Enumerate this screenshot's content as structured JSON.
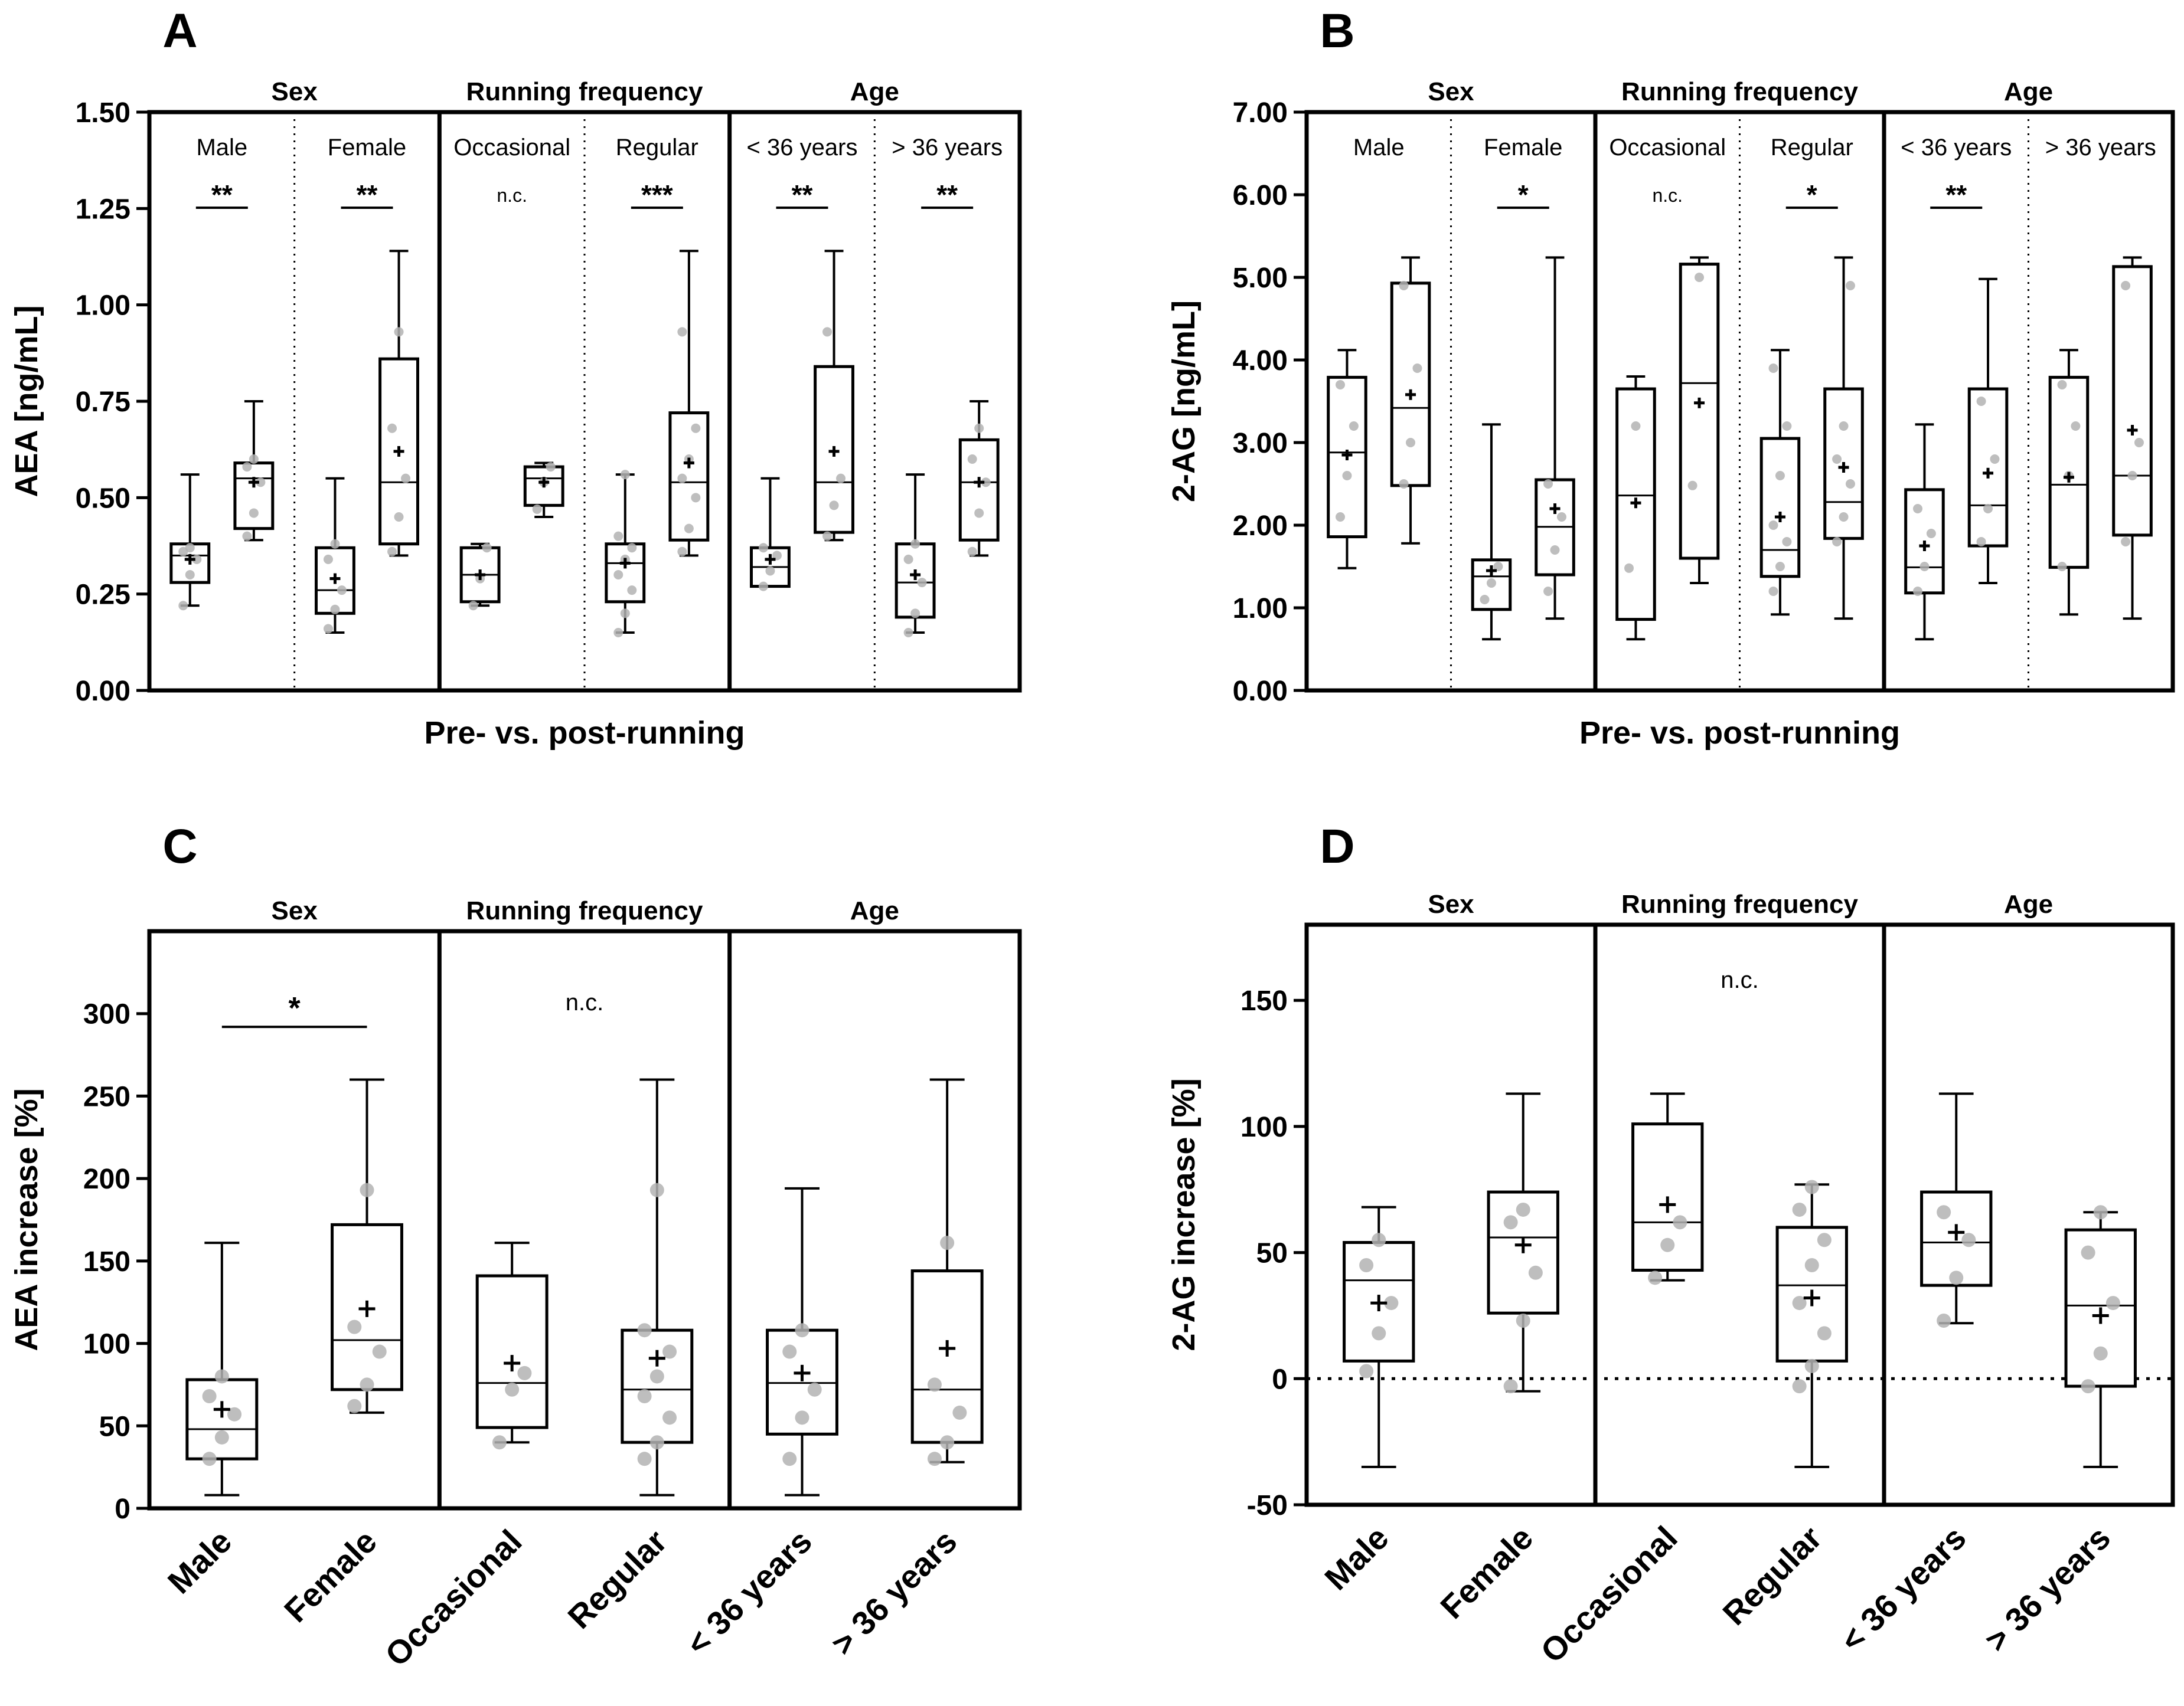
{
  "colors": {
    "axis": "#000000",
    "box": "#000000",
    "point": "#b3b3b3",
    "mean": "#000000"
  },
  "chart_data": [
    {
      "panel": "A",
      "type": "box",
      "ylabel": "AEA [ng/mL]",
      "xlabel": "Pre- vs. post-running",
      "ylim": [
        0,
        1.5
      ],
      "yticks": [
        "0.00",
        "0.25",
        "0.50",
        "0.75",
        "1.00",
        "1.25",
        "1.50"
      ],
      "groups": [
        "Sex",
        "Running frequency",
        "Age"
      ],
      "categories": [
        "Male",
        "Female",
        "Occasional",
        "Regular",
        "< 36 years",
        "> 36 years"
      ],
      "significance": [
        "**",
        "**",
        "n.c.",
        "***",
        "**",
        "**"
      ],
      "boxes": [
        {
          "cat": 0,
          "min": 0.22,
          "q1": 0.28,
          "median": 0.35,
          "q3": 0.38,
          "max": 0.56,
          "mean": 0.34,
          "points": [
            0.22,
            0.3,
            0.34,
            0.36,
            0.37
          ]
        },
        {
          "cat": 0,
          "min": 0.39,
          "q1": 0.42,
          "median": 0.55,
          "q3": 0.59,
          "max": 0.75,
          "mean": 0.54,
          "points": [
            0.4,
            0.46,
            0.54,
            0.58,
            0.6
          ]
        },
        {
          "cat": 1,
          "min": 0.15,
          "q1": 0.2,
          "median": 0.26,
          "q3": 0.37,
          "max": 0.55,
          "mean": 0.29,
          "points": [
            0.16,
            0.21,
            0.26,
            0.34,
            0.38
          ]
        },
        {
          "cat": 1,
          "min": 0.35,
          "q1": 0.38,
          "median": 0.54,
          "q3": 0.86,
          "max": 1.14,
          "mean": 0.62,
          "points": [
            0.36,
            0.45,
            0.55,
            0.68,
            0.93
          ]
        },
        {
          "cat": 2,
          "min": 0.22,
          "q1": 0.23,
          "median": 0.3,
          "q3": 0.37,
          "max": 0.38,
          "mean": 0.3,
          "points": [
            0.22,
            0.29,
            0.37
          ]
        },
        {
          "cat": 2,
          "min": 0.45,
          "q1": 0.48,
          "median": 0.55,
          "q3": 0.58,
          "max": 0.59,
          "mean": 0.54,
          "points": [
            0.47,
            0.54,
            0.58
          ]
        },
        {
          "cat": 3,
          "min": 0.15,
          "q1": 0.23,
          "median": 0.33,
          "q3": 0.38,
          "max": 0.56,
          "mean": 0.33,
          "points": [
            0.15,
            0.2,
            0.26,
            0.3,
            0.34,
            0.37,
            0.4,
            0.56
          ]
        },
        {
          "cat": 3,
          "min": 0.35,
          "q1": 0.39,
          "median": 0.54,
          "q3": 0.72,
          "max": 1.14,
          "mean": 0.59,
          "points": [
            0.36,
            0.42,
            0.5,
            0.55,
            0.6,
            0.68,
            0.93
          ]
        },
        {
          "cat": 4,
          "min": 0.27,
          "q1": 0.27,
          "median": 0.32,
          "q3": 0.37,
          "max": 0.55,
          "mean": 0.34,
          "points": [
            0.27,
            0.31,
            0.35,
            0.37
          ]
        },
        {
          "cat": 4,
          "min": 0.39,
          "q1": 0.41,
          "median": 0.54,
          "q3": 0.84,
          "max": 1.14,
          "mean": 0.62,
          "points": [
            0.4,
            0.48,
            0.55,
            0.93
          ]
        },
        {
          "cat": 5,
          "min": 0.15,
          "q1": 0.19,
          "median": 0.28,
          "q3": 0.38,
          "max": 0.56,
          "mean": 0.3,
          "points": [
            0.15,
            0.2,
            0.28,
            0.34,
            0.38
          ]
        },
        {
          "cat": 5,
          "min": 0.35,
          "q1": 0.39,
          "median": 0.54,
          "q3": 0.65,
          "max": 0.75,
          "mean": 0.54,
          "points": [
            0.36,
            0.46,
            0.54,
            0.6,
            0.68
          ]
        }
      ]
    },
    {
      "panel": "B",
      "type": "box",
      "ylabel": "2-AG [ng/mL]",
      "xlabel": "Pre- vs. post-running",
      "ylim": [
        0,
        7
      ],
      "yticks": [
        "0.00",
        "1.00",
        "2.00",
        "3.00",
        "4.00",
        "5.00",
        "6.00",
        "7.00"
      ],
      "groups": [
        "Sex",
        "Running frequency",
        "Age"
      ],
      "categories": [
        "Male",
        "Female",
        "Occasional",
        "Regular",
        "< 36 years",
        "> 36 years"
      ],
      "significance": [
        "",
        "*",
        "n.c.",
        "*",
        "**",
        ""
      ],
      "boxes": [
        {
          "cat": 0,
          "min": 1.48,
          "q1": 1.86,
          "median": 2.88,
          "q3": 3.79,
          "max": 4.12,
          "mean": 2.85,
          "points": [
            2.1,
            2.6,
            3.2,
            3.7
          ]
        },
        {
          "cat": 0,
          "min": 1.78,
          "q1": 2.48,
          "median": 3.42,
          "q3": 4.93,
          "max": 5.24,
          "mean": 3.58,
          "points": [
            2.5,
            3.0,
            3.9,
            4.9
          ]
        },
        {
          "cat": 1,
          "min": 0.62,
          "q1": 0.98,
          "median": 1.38,
          "q3": 1.58,
          "max": 3.22,
          "mean": 1.45,
          "points": [
            1.1,
            1.3,
            1.5
          ]
        },
        {
          "cat": 1,
          "min": 0.87,
          "q1": 1.4,
          "median": 1.98,
          "q3": 2.55,
          "max": 5.24,
          "mean": 2.2,
          "points": [
            1.2,
            1.7,
            2.1,
            2.5
          ]
        },
        {
          "cat": 2,
          "min": 0.62,
          "q1": 0.86,
          "median": 2.36,
          "q3": 3.65,
          "max": 3.8,
          "mean": 2.27,
          "points": [
            1.48,
            3.2
          ]
        },
        {
          "cat": 2,
          "min": 1.3,
          "q1": 1.6,
          "median": 3.72,
          "q3": 5.16,
          "max": 5.24,
          "mean": 3.48,
          "points": [
            2.48,
            5.0
          ]
        },
        {
          "cat": 3,
          "min": 0.92,
          "q1": 1.38,
          "median": 1.7,
          "q3": 3.05,
          "max": 4.12,
          "mean": 2.1,
          "points": [
            1.2,
            1.5,
            1.8,
            2.0,
            2.6,
            3.2,
            3.9
          ]
        },
        {
          "cat": 3,
          "min": 0.87,
          "q1": 1.84,
          "median": 2.28,
          "q3": 3.65,
          "max": 5.24,
          "mean": 2.7,
          "points": [
            1.8,
            2.1,
            2.5,
            2.8,
            3.2,
            4.9
          ]
        },
        {
          "cat": 4,
          "min": 0.62,
          "q1": 1.18,
          "median": 1.49,
          "q3": 2.43,
          "max": 3.22,
          "mean": 1.75,
          "points": [
            1.2,
            1.5,
            1.9,
            2.2
          ]
        },
        {
          "cat": 4,
          "min": 1.3,
          "q1": 1.75,
          "median": 2.24,
          "q3": 3.65,
          "max": 4.98,
          "mean": 2.63,
          "points": [
            1.8,
            2.2,
            2.8,
            3.5
          ]
        },
        {
          "cat": 5,
          "min": 0.92,
          "q1": 1.49,
          "median": 2.49,
          "q3": 3.79,
          "max": 4.12,
          "mean": 2.58,
          "points": [
            1.5,
            2.6,
            3.2,
            3.7
          ]
        },
        {
          "cat": 5,
          "min": 0.87,
          "q1": 1.88,
          "median": 2.6,
          "q3": 5.13,
          "max": 5.24,
          "mean": 3.15,
          "points": [
            1.8,
            2.6,
            3.0,
            4.9
          ]
        }
      ]
    },
    {
      "panel": "C",
      "type": "box",
      "ylabel": "AEA increase [%]",
      "ylim": [
        0,
        350
      ],
      "yticks": [
        "0",
        "50",
        "100",
        "150",
        "200",
        "250",
        "300"
      ],
      "groups": [
        "Sex",
        "Running frequency",
        "Age"
      ],
      "categories": [
        "Male",
        "Female",
        "Occasional",
        "Regular",
        "< 36 years",
        "> 36 years"
      ],
      "significance": [
        "*",
        "n.c."
      ],
      "boxes": [
        {
          "cat": 0,
          "min": 8,
          "q1": 30,
          "median": 48,
          "q3": 78,
          "max": 161,
          "mean": 60,
          "points": [
            30,
            43,
            57,
            68,
            80
          ]
        },
        {
          "cat": 1,
          "min": 58,
          "q1": 72,
          "median": 102,
          "q3": 172,
          "max": 260,
          "mean": 121,
          "points": [
            62,
            75,
            95,
            110,
            193
          ]
        },
        {
          "cat": 2,
          "min": 40,
          "q1": 49,
          "median": 76,
          "q3": 141,
          "max": 161,
          "mean": 88,
          "points": [
            40,
            72,
            82
          ]
        },
        {
          "cat": 3,
          "min": 8,
          "q1": 40,
          "median": 72,
          "q3": 108,
          "max": 260,
          "mean": 91,
          "points": [
            30,
            40,
            55,
            68,
            80,
            95,
            108,
            193
          ]
        },
        {
          "cat": 4,
          "min": 8,
          "q1": 45,
          "median": 76,
          "q3": 108,
          "max": 194,
          "mean": 82,
          "points": [
            30,
            55,
            72,
            95,
            108
          ]
        },
        {
          "cat": 5,
          "min": 28,
          "q1": 40,
          "median": 72,
          "q3": 144,
          "max": 260,
          "mean": 97,
          "points": [
            30,
            40,
            58,
            75,
            161
          ]
        }
      ]
    },
    {
      "panel": "D",
      "type": "box",
      "ylabel": "2-AG increase [%]",
      "ylim": [
        -50,
        180
      ],
      "yticks": [
        "-50",
        "0",
        "50",
        "100",
        "150"
      ],
      "groups": [
        "Sex",
        "Running frequency",
        "Age"
      ],
      "categories": [
        "Male",
        "Female",
        "Occasional",
        "Regular",
        "< 36 years",
        "> 36 years"
      ],
      "significance": [
        "n.c."
      ],
      "boxes": [
        {
          "cat": 0,
          "min": -35,
          "q1": 7,
          "median": 39,
          "q3": 54,
          "max": 68,
          "mean": 30,
          "points": [
            3,
            18,
            30,
            45,
            55
          ]
        },
        {
          "cat": 1,
          "min": -5,
          "q1": 26,
          "median": 56,
          "q3": 74,
          "max": 113,
          "mean": 53,
          "points": [
            -3,
            23,
            42,
            62,
            67
          ]
        },
        {
          "cat": 2,
          "min": 39,
          "q1": 43,
          "median": 62,
          "q3": 101,
          "max": 113,
          "mean": 69,
          "points": [
            40,
            53,
            62
          ]
        },
        {
          "cat": 3,
          "min": -35,
          "q1": 7,
          "median": 37,
          "q3": 60,
          "max": 77,
          "mean": 32,
          "points": [
            -3,
            5,
            18,
            30,
            45,
            55,
            67,
            76
          ]
        },
        {
          "cat": 4,
          "min": 22,
          "q1": 37,
          "median": 54,
          "q3": 74,
          "max": 113,
          "mean": 58,
          "points": [
            23,
            40,
            55,
            66
          ]
        },
        {
          "cat": 5,
          "min": -35,
          "q1": -3,
          "median": 29,
          "q3": 59,
          "max": 66,
          "mean": 25,
          "points": [
            -3,
            10,
            30,
            50,
            66
          ]
        }
      ]
    }
  ]
}
